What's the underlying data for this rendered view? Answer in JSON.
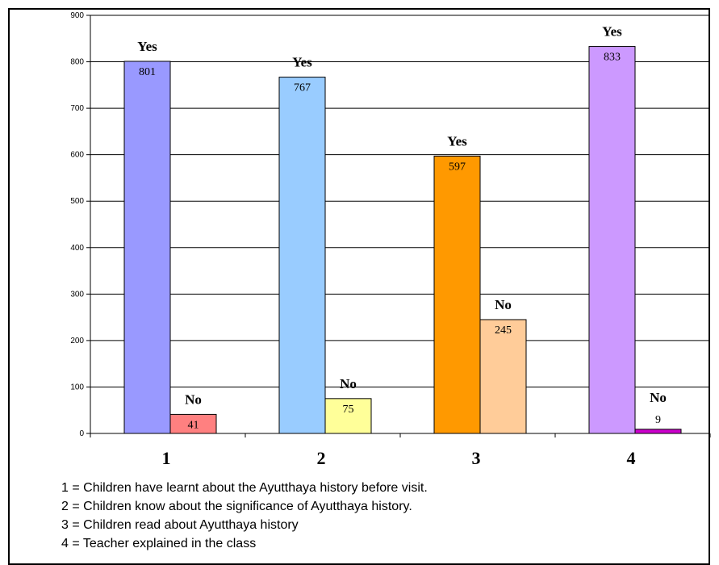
{
  "chart_data": {
    "type": "bar",
    "categories": [
      "1",
      "2",
      "3",
      "4"
    ],
    "series": [
      {
        "name": "Yes",
        "values": [
          801,
          767,
          597,
          833
        ],
        "colors": [
          "#9999ff",
          "#99ccff",
          "#ff9900",
          "#cc99ff"
        ]
      },
      {
        "name": "No",
        "values": [
          41,
          75,
          245,
          9
        ],
        "colors": [
          "#ff8080",
          "#ffff99",
          "#ffcc99",
          "#cc00cc"
        ]
      }
    ],
    "ylim": [
      0,
      900
    ],
    "yticks": [
      0,
      100,
      200,
      300,
      400,
      500,
      600,
      700,
      800,
      900
    ],
    "grid": true,
    "legend": [
      "1 = Children have learnt about the Ayutthaya history before visit.",
      "2 = Children know about the significance of Ayutthaya history.",
      "3 = Children read about Ayutthaya history",
      "4 = Teacher explained in the class"
    ]
  }
}
